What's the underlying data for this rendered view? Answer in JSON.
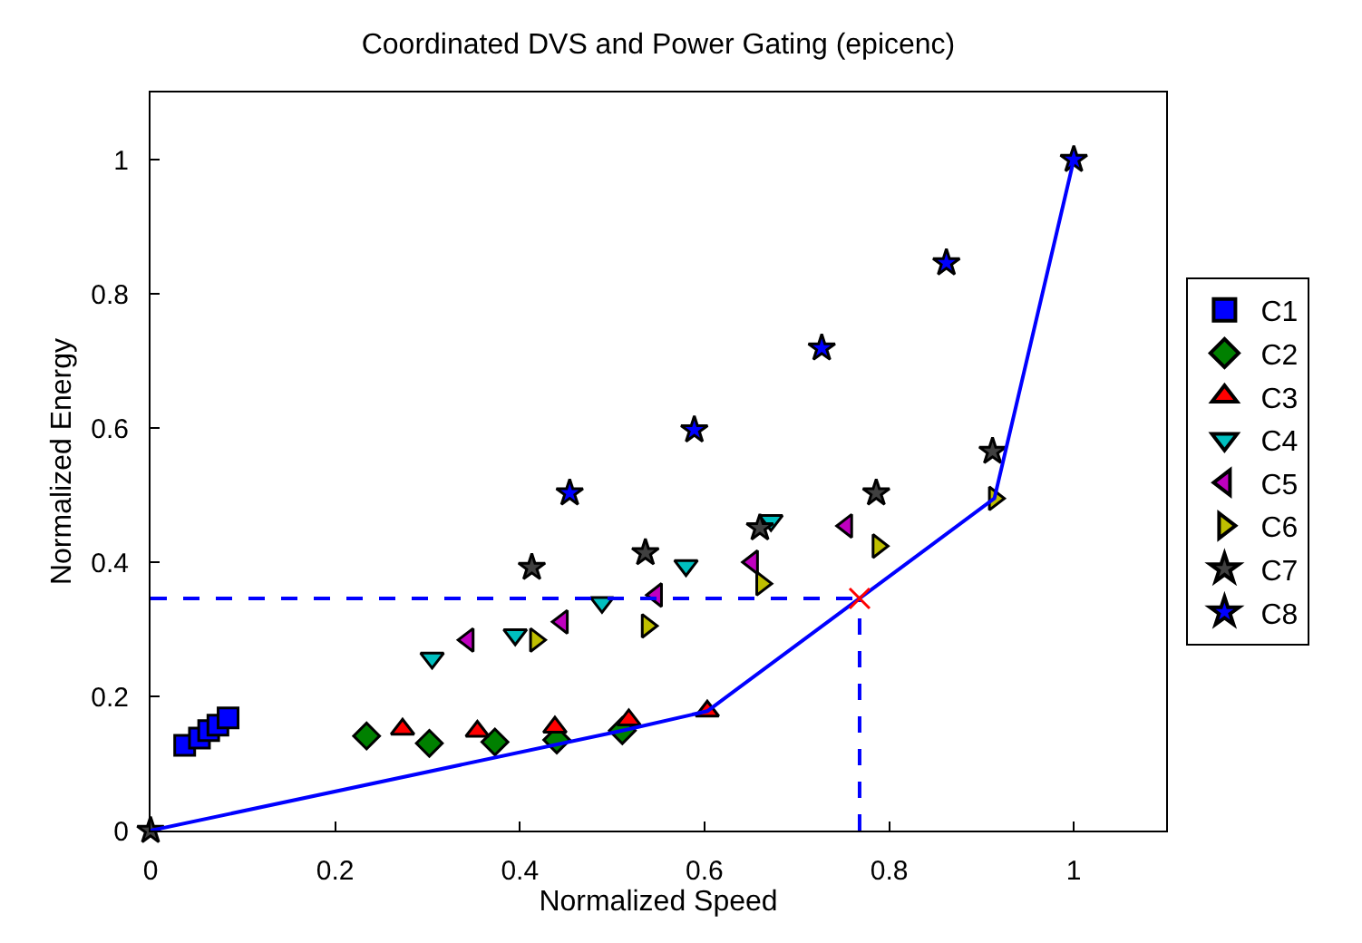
{
  "chart_data": {
    "type": "scatter",
    "title": "Coordinated DVS and Power Gating (epicenc)",
    "xlabel": "Normalized Speed",
    "ylabel": "Normalized Energy",
    "xlim": [
      0,
      1.1
    ],
    "ylim": [
      0,
      1.1
    ],
    "xticks": [
      0,
      0.2,
      0.4,
      0.6,
      0.8,
      1
    ],
    "yticks": [
      0,
      0.2,
      0.4,
      0.6,
      0.8,
      1
    ],
    "legend": "right",
    "series": [
      {
        "name": "C1",
        "color": "#0000ff",
        "marker": "square",
        "x": [
          0.037,
          0.053,
          0.063,
          0.073,
          0.084
        ],
        "values": [
          0.127,
          0.138,
          0.149,
          0.157,
          0.168
        ]
      },
      {
        "name": "C2",
        "color": "#008000",
        "marker": "diamond",
        "x": [
          0.234,
          0.302,
          0.373,
          0.44,
          0.511
        ],
        "values": [
          0.141,
          0.13,
          0.132,
          0.135,
          0.149
        ]
      },
      {
        "name": "C3",
        "color": "#ff0000",
        "marker": "triangle-up",
        "x": [
          0.273,
          0.354,
          0.438,
          0.518,
          0.603
        ],
        "values": [
          0.151,
          0.148,
          0.154,
          0.165,
          0.178
        ]
      },
      {
        "name": "C4",
        "color": "#00bfbf",
        "marker": "triangle-down",
        "x": [
          0.305,
          0.395,
          0.489,
          0.58,
          0.672
        ],
        "values": [
          0.257,
          0.292,
          0.34,
          0.395,
          0.462
        ]
      },
      {
        "name": "C5",
        "color": "#bf00bf",
        "marker": "triangle-left",
        "x": [
          0.344,
          0.446,
          0.548,
          0.652,
          0.754
        ],
        "values": [
          0.284,
          0.311,
          0.351,
          0.4,
          0.454
        ]
      },
      {
        "name": "C6",
        "color": "#bfbf00",
        "marker": "triangle-right",
        "x": [
          0.417,
          0.538,
          0.662,
          0.788,
          0.914
        ],
        "values": [
          0.284,
          0.305,
          0.368,
          0.424,
          0.495
        ]
      },
      {
        "name": "C7",
        "color": "#404040",
        "marker": "star",
        "x": [
          0,
          0.413,
          0.536,
          0.66,
          0.786,
          0.912
        ],
        "values": [
          0,
          0.392,
          0.414,
          0.451,
          0.503,
          0.565
        ]
      },
      {
        "name": "C8",
        "color": "#0000ff",
        "marker": "star",
        "x": [
          0.454,
          0.589,
          0.727,
          0.862,
          1.0
        ],
        "values": [
          0.503,
          0.597,
          0.719,
          0.846,
          1.0
        ]
      },
      {
        "type": "line",
        "color": "#0000ff",
        "marker": "none",
        "line_style": "solid",
        "x": [
          0,
          0.511,
          0.603,
          0.914,
          1.0
        ],
        "values": [
          0,
          0.149,
          0.178,
          0.495,
          1.0
        ]
      },
      {
        "type": "line",
        "color": "#0000ff",
        "marker": "none",
        "line_style": "dashed",
        "x": [
          0,
          0.768
        ],
        "values": [
          0.346,
          0.346
        ]
      },
      {
        "type": "line",
        "color": "#0000ff",
        "marker": "none",
        "line_style": "dashed",
        "x": [
          0.768,
          0.768
        ],
        "values": [
          0,
          0.346
        ]
      },
      {
        "color": "#ff0000",
        "marker": "cross",
        "x": [
          0.768
        ],
        "values": [
          0.346
        ]
      }
    ]
  }
}
